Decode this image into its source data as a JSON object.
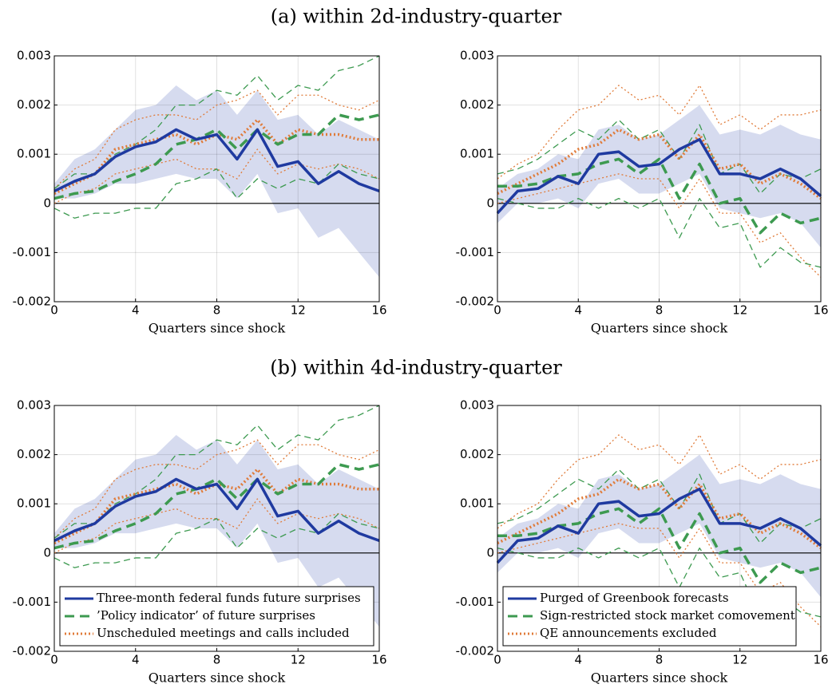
{
  "section_titles": [
    "(a) within 2d-industry-quarter",
    "(b) within 4d-industry-quarter"
  ],
  "chart_data": [
    {
      "type": "line",
      "xlabel": "Quarters since shock",
      "xlim": [
        0,
        16
      ],
      "xticks": [
        0,
        4,
        8,
        12,
        16
      ],
      "ylim": [
        -0.002,
        0.003
      ],
      "yticks": [
        -0.002,
        -0.001,
        0,
        0.001,
        0.002,
        0.003
      ],
      "grid": true,
      "legend": false,
      "x": [
        0,
        1,
        2,
        3,
        4,
        5,
        6,
        7,
        8,
        9,
        10,
        11,
        12,
        13,
        14,
        15,
        16
      ],
      "band": {
        "color": "#d6dbef",
        "upper": [
          0.0004,
          0.0009,
          0.0011,
          0.0015,
          0.0019,
          0.002,
          0.0024,
          0.0021,
          0.0023,
          0.0018,
          0.0023,
          0.0017,
          0.0018,
          0.0014,
          0.0017,
          0.0015,
          0.0013
        ],
        "lower": [
          0.0001,
          0.0001,
          0.0002,
          0.0004,
          0.0004,
          0.0005,
          0.0006,
          0.0005,
          0.0005,
          0.0001,
          0.0006,
          -0.0002,
          -0.0001,
          -0.0007,
          -0.0005,
          -0.001,
          -0.0015
        ]
      },
      "series": [
        {
          "color": "#e07b39",
          "style": "dotted",
          "bold": false,
          "values": [
            0.0003,
            0.0007,
            0.0009,
            0.0015,
            0.0017,
            0.0018,
            0.0018,
            0.0017,
            0.002,
            0.0021,
            0.0023,
            0.0018,
            0.0022,
            0.0022,
            0.002,
            0.0019,
            0.0021
          ]
        },
        {
          "color": "#e07b39",
          "style": "dotted",
          "bold": false,
          "values": [
            0,
            0.0002,
            0.0003,
            0.0006,
            0.0007,
            0.0008,
            0.0009,
            0.0007,
            0.0007,
            0.0005,
            0.0011,
            0.0006,
            0.0008,
            0.0007,
            0.0008,
            0.0007,
            0.0005
          ]
        },
        {
          "color": "#3d9a50",
          "style": "dashed",
          "bold": false,
          "values": [
            0.0003,
            0.0006,
            0.0006,
            0.001,
            0.0012,
            0.0015,
            0.002,
            0.002,
            0.0023,
            0.0022,
            0.0026,
            0.0021,
            0.0024,
            0.0023,
            0.0027,
            0.0028,
            0.003
          ]
        },
        {
          "color": "#3d9a50",
          "style": "dashed",
          "bold": false,
          "values": [
            -0.0001,
            -0.0003,
            -0.0002,
            -0.0002,
            -0.0001,
            -0.0001,
            0.0004,
            0.0005,
            0.0007,
            0.0001,
            0.0005,
            0.0003,
            0.0005,
            0.0004,
            0.0008,
            0.0006,
            0.0005
          ]
        },
        {
          "color": "#e07b39",
          "style": "dotted",
          "bold": true,
          "values": [
            0.0002,
            0.0004,
            0.0006,
            0.0011,
            0.0012,
            0.0013,
            0.0014,
            0.0012,
            0.0014,
            0.0013,
            0.0017,
            0.0012,
            0.0015,
            0.0014,
            0.0014,
            0.0013,
            0.0013
          ]
        },
        {
          "color": "#3d9a50",
          "style": "dashed",
          "bold": true,
          "values": [
            0.0001,
            0.0002,
            0.00025,
            0.00045,
            0.0006,
            0.0008,
            0.0012,
            0.0013,
            0.0015,
            0.0011,
            0.0015,
            0.0012,
            0.0014,
            0.0014,
            0.0018,
            0.0017,
            0.0018
          ]
        },
        {
          "color": "#1f3aa0",
          "style": "solid",
          "bold": true,
          "values": [
            0.00025,
            0.00045,
            0.0006,
            0.00095,
            0.00115,
            0.00125,
            0.0015,
            0.0013,
            0.0014,
            0.0009,
            0.0015,
            0.00075,
            0.00085,
            0.0004,
            0.00065,
            0.0004,
            0.00025
          ]
        }
      ]
    },
    {
      "type": "line",
      "xlabel": "Quarters since shock",
      "xlim": [
        0,
        16
      ],
      "xticks": [
        0,
        4,
        8,
        12,
        16
      ],
      "ylim": [
        -0.002,
        0.003
      ],
      "yticks": [
        -0.002,
        -0.001,
        0,
        0.001,
        0.002,
        0.003
      ],
      "grid": true,
      "legend": false,
      "x": [
        0,
        1,
        2,
        3,
        4,
        5,
        6,
        7,
        8,
        9,
        10,
        11,
        12,
        13,
        14,
        15,
        16
      ],
      "band": {
        "color": "#d6dbef",
        "upper": [
          0.0003,
          0.0006,
          0.0007,
          0.001,
          0.0009,
          0.0015,
          0.0016,
          0.0013,
          0.0014,
          0.0017,
          0.002,
          0.0014,
          0.0015,
          0.0014,
          0.0016,
          0.0014,
          0.0013
        ],
        "lower": [
          -0.0004,
          0,
          0,
          0.0001,
          -0.0001,
          0.0004,
          0.0005,
          0.0002,
          0.0002,
          0.0004,
          0.0006,
          -0.0001,
          -0.0002,
          -0.0003,
          -0.0002,
          -0.0004,
          -0.0009
        ]
      },
      "series": [
        {
          "color": "#e07b39",
          "style": "dotted",
          "bold": false,
          "values": [
            0.0005,
            0.0008,
            0.001,
            0.0015,
            0.0019,
            0.002,
            0.0024,
            0.0021,
            0.0022,
            0.0018,
            0.0024,
            0.0016,
            0.0018,
            0.0015,
            0.0018,
            0.0018,
            0.0019
          ]
        },
        {
          "color": "#e07b39",
          "style": "dotted",
          "bold": false,
          "values": [
            0,
            0.0001,
            0.0002,
            0.0003,
            0.0004,
            0.0005,
            0.0006,
            0.0005,
            0.0005,
            -0.0001,
            0.0005,
            -0.0002,
            -0.0002,
            -0.0008,
            -0.0006,
            -0.0011,
            -0.0015
          ]
        },
        {
          "color": "#3d9a50",
          "style": "dashed",
          "bold": false,
          "values": [
            0.0006,
            0.0007,
            0.0009,
            0.0012,
            0.0015,
            0.0013,
            0.0017,
            0.0013,
            0.0015,
            0.0009,
            0.0016,
            0.0006,
            0.0008,
            0.0002,
            0.0006,
            0.0005,
            0.0007
          ]
        },
        {
          "color": "#3d9a50",
          "style": "dashed",
          "bold": false,
          "values": [
            0.0001,
            0,
            -0.0001,
            -0.0001,
            0.0001,
            -0.0001,
            0.0001,
            -0.0001,
            0.0001,
            -0.0007,
            0.0001,
            -0.0005,
            -0.0004,
            -0.0013,
            -0.0009,
            -0.0012,
            -0.0013
          ]
        },
        {
          "color": "#e07b39",
          "style": "dotted",
          "bold": true,
          "values": [
            0.0002,
            0.0004,
            0.0006,
            0.0008,
            0.0011,
            0.0012,
            0.0015,
            0.0013,
            0.0014,
            0.0009,
            0.0014,
            0.0007,
            0.0008,
            0.0004,
            0.0006,
            0.0004,
            0.0001
          ]
        },
        {
          "color": "#3d9a50",
          "style": "dashed",
          "bold": true,
          "values": [
            0.00035,
            0.00035,
            0.0004,
            0.00055,
            0.0006,
            0.0008,
            0.0009,
            0.0006,
            0.0009,
            0.0001,
            0.0008,
            0,
            0.0001,
            -0.0006,
            -0.0002,
            -0.0004,
            -0.0003
          ]
        },
        {
          "color": "#1f3aa0",
          "style": "solid",
          "bold": true,
          "values": [
            -0.0002,
            0.00025,
            0.0003,
            0.00055,
            0.0004,
            0.001,
            0.00105,
            0.00075,
            0.0008,
            0.0011,
            0.0013,
            0.0006,
            0.0006,
            0.0005,
            0.0007,
            0.0005,
            0.00015
          ]
        }
      ]
    },
    {
      "type": "line",
      "xlabel": "Quarters since shock",
      "xlim": [
        0,
        16
      ],
      "xticks": [
        0,
        4,
        8,
        12,
        16
      ],
      "ylim": [
        -0.002,
        0.003
      ],
      "yticks": [
        -0.002,
        -0.001,
        0,
        0.001,
        0.002,
        0.003
      ],
      "grid": true,
      "legend": "lower left",
      "x": [
        0,
        1,
        2,
        3,
        4,
        5,
        6,
        7,
        8,
        9,
        10,
        11,
        12,
        13,
        14,
        15,
        16
      ],
      "band": {
        "color": "#d6dbef",
        "upper": [
          0.0004,
          0.0009,
          0.0011,
          0.0015,
          0.0019,
          0.002,
          0.0024,
          0.0021,
          0.0023,
          0.0018,
          0.0023,
          0.0017,
          0.0018,
          0.0014,
          0.0017,
          0.0015,
          0.0013
        ],
        "lower": [
          0.0001,
          0.0001,
          0.0002,
          0.0004,
          0.0004,
          0.0005,
          0.0006,
          0.0005,
          0.0005,
          0.0001,
          0.0006,
          -0.0002,
          -0.0001,
          -0.0007,
          -0.0005,
          -0.001,
          -0.0015
        ]
      },
      "series": [
        {
          "color": "#e07b39",
          "style": "dotted",
          "bold": false,
          "values": [
            0.0003,
            0.0007,
            0.0009,
            0.0015,
            0.0017,
            0.0018,
            0.0018,
            0.0017,
            0.002,
            0.0021,
            0.0023,
            0.0018,
            0.0022,
            0.0022,
            0.002,
            0.0019,
            0.0021
          ]
        },
        {
          "color": "#e07b39",
          "style": "dotted",
          "bold": false,
          "values": [
            0,
            0.0002,
            0.0003,
            0.0006,
            0.0007,
            0.0008,
            0.0009,
            0.0007,
            0.0007,
            0.0005,
            0.0011,
            0.0006,
            0.0008,
            0.0007,
            0.0008,
            0.0007,
            0.0005
          ]
        },
        {
          "color": "#3d9a50",
          "style": "dashed",
          "bold": false,
          "values": [
            0.0003,
            0.0006,
            0.0006,
            0.001,
            0.0012,
            0.0015,
            0.002,
            0.002,
            0.0023,
            0.0022,
            0.0026,
            0.0021,
            0.0024,
            0.0023,
            0.0027,
            0.0028,
            0.003
          ]
        },
        {
          "color": "#3d9a50",
          "style": "dashed",
          "bold": false,
          "values": [
            -0.0001,
            -0.0003,
            -0.0002,
            -0.0002,
            -0.0001,
            -0.0001,
            0.0004,
            0.0005,
            0.0007,
            0.0001,
            0.0005,
            0.0003,
            0.0005,
            0.0004,
            0.0008,
            0.0006,
            0.0005
          ]
        },
        {
          "color": "#e07b39",
          "style": "dotted",
          "bold": true,
          "name": "Unscheduled meetings and calls included",
          "values": [
            0.0002,
            0.0004,
            0.0006,
            0.0011,
            0.0012,
            0.0013,
            0.0014,
            0.0012,
            0.0014,
            0.0013,
            0.0017,
            0.0012,
            0.0015,
            0.0014,
            0.0014,
            0.0013,
            0.0013
          ]
        },
        {
          "color": "#3d9a50",
          "style": "dashed",
          "bold": true,
          "name": "’Policy indicator’ of future surprises",
          "values": [
            0.0001,
            0.0002,
            0.00025,
            0.00045,
            0.0006,
            0.0008,
            0.0012,
            0.0013,
            0.0015,
            0.0011,
            0.0015,
            0.0012,
            0.0014,
            0.0014,
            0.0018,
            0.0017,
            0.0018
          ]
        },
        {
          "color": "#1f3aa0",
          "style": "solid",
          "bold": true,
          "name": "Three-month federal funds future surprises",
          "values": [
            0.00025,
            0.00045,
            0.0006,
            0.00095,
            0.00115,
            0.00125,
            0.0015,
            0.0013,
            0.0014,
            0.0009,
            0.0015,
            0.00075,
            0.00085,
            0.0004,
            0.00065,
            0.0004,
            0.00025
          ]
        }
      ]
    },
    {
      "type": "line",
      "xlabel": "Quarters since shock",
      "xlim": [
        0,
        16
      ],
      "xticks": [
        0,
        4,
        8,
        12,
        16
      ],
      "ylim": [
        -0.002,
        0.003
      ],
      "yticks": [
        -0.002,
        -0.001,
        0,
        0.001,
        0.002,
        0.003
      ],
      "grid": true,
      "legend": "lower left",
      "x": [
        0,
        1,
        2,
        3,
        4,
        5,
        6,
        7,
        8,
        9,
        10,
        11,
        12,
        13,
        14,
        15,
        16
      ],
      "band": {
        "color": "#d6dbef",
        "upper": [
          0.0003,
          0.0006,
          0.0007,
          0.001,
          0.0009,
          0.0015,
          0.0016,
          0.0013,
          0.0014,
          0.0017,
          0.002,
          0.0014,
          0.0015,
          0.0014,
          0.0016,
          0.0014,
          0.0013
        ],
        "lower": [
          -0.0004,
          0,
          0,
          0.0001,
          -0.0001,
          0.0004,
          0.0005,
          0.0002,
          0.0002,
          0.0004,
          0.0006,
          -0.0001,
          -0.0002,
          -0.0003,
          -0.0002,
          -0.0004,
          -0.0009
        ]
      },
      "series": [
        {
          "color": "#e07b39",
          "style": "dotted",
          "bold": false,
          "values": [
            0.0005,
            0.0008,
            0.001,
            0.0015,
            0.0019,
            0.002,
            0.0024,
            0.0021,
            0.0022,
            0.0018,
            0.0024,
            0.0016,
            0.0018,
            0.0015,
            0.0018,
            0.0018,
            0.0019
          ]
        },
        {
          "color": "#e07b39",
          "style": "dotted",
          "bold": false,
          "values": [
            0,
            0.0001,
            0.0002,
            0.0003,
            0.0004,
            0.0005,
            0.0006,
            0.0005,
            0.0005,
            -0.0001,
            0.0005,
            -0.0002,
            -0.0002,
            -0.0008,
            -0.0006,
            -0.0011,
            -0.0015
          ]
        },
        {
          "color": "#3d9a50",
          "style": "dashed",
          "bold": false,
          "values": [
            0.0006,
            0.0007,
            0.0009,
            0.0012,
            0.0015,
            0.0013,
            0.0017,
            0.0013,
            0.0015,
            0.0009,
            0.0016,
            0.0006,
            0.0008,
            0.0002,
            0.0006,
            0.0005,
            0.0007
          ]
        },
        {
          "color": "#3d9a50",
          "style": "dashed",
          "bold": false,
          "values": [
            0.0001,
            0,
            -0.0001,
            -0.0001,
            0.0001,
            -0.0001,
            0.0001,
            -0.0001,
            0.0001,
            -0.0007,
            0.0001,
            -0.0005,
            -0.0004,
            -0.0013,
            -0.0009,
            -0.0012,
            -0.0013
          ]
        },
        {
          "color": "#e07b39",
          "style": "dotted",
          "bold": true,
          "name": "QE announcements excluded",
          "values": [
            0.0002,
            0.0004,
            0.0006,
            0.0008,
            0.0011,
            0.0012,
            0.0015,
            0.0013,
            0.0014,
            0.0009,
            0.0014,
            0.0007,
            0.0008,
            0.0004,
            0.0006,
            0.0004,
            0.0001
          ]
        },
        {
          "color": "#3d9a50",
          "style": "dashed",
          "bold": true,
          "name": "Sign-restricted stock market comovement",
          "values": [
            0.00035,
            0.00035,
            0.0004,
            0.00055,
            0.0006,
            0.0008,
            0.0009,
            0.0006,
            0.0009,
            0.0001,
            0.0008,
            0,
            0.0001,
            -0.0006,
            -0.0002,
            -0.0004,
            -0.0003
          ]
        },
        {
          "color": "#1f3aa0",
          "style": "solid",
          "bold": true,
          "name": "Purged of Greenbook forecasts",
          "values": [
            -0.0002,
            0.00025,
            0.0003,
            0.00055,
            0.0004,
            0.001,
            0.00105,
            0.00075,
            0.0008,
            0.0011,
            0.0013,
            0.0006,
            0.0006,
            0.0005,
            0.0007,
            0.0005,
            0.00015
          ]
        }
      ]
    }
  ]
}
